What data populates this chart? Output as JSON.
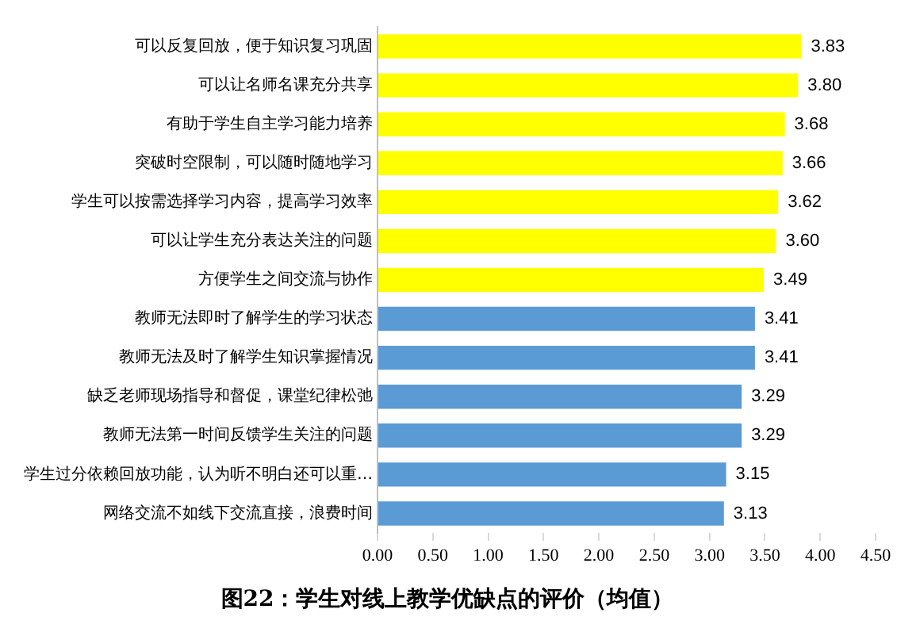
{
  "chart_data": {
    "type": "bar",
    "orientation": "horizontal",
    "title": "图22：学生对线上教学优缺点的评价（均值）",
    "categories": [
      "可以反复回放，便于知识复习巩固",
      "可以让名师名课充分共享",
      "有助于学生自主学习能力培养",
      "突破时空限制，可以随时随地学习",
      "学生可以按需选择学习内容，提高学习效率",
      "可以让学生充分表达关注的问题",
      "方便学生之间交流与协作",
      "教师无法即时了解学生的学习状态",
      "教师无法及时了解学生知识掌握情况",
      "缺乏老师现场指导和督促，课堂纪律松弛",
      "教师无法第一时间反馈学生关注的问题",
      "学生过分依赖回放功能，认为听不明白还可以重…",
      "网络交流不如线下交流直接，浪费时间"
    ],
    "values": [
      3.83,
      3.8,
      3.68,
      3.66,
      3.62,
      3.6,
      3.49,
      3.41,
      3.41,
      3.29,
      3.29,
      3.15,
      3.13
    ],
    "colors": [
      "#ffff00",
      "#ffff00",
      "#ffff00",
      "#ffff00",
      "#ffff00",
      "#ffff00",
      "#ffff00",
      "#5b9bd5",
      "#5b9bd5",
      "#5b9bd5",
      "#5b9bd5",
      "#5b9bd5",
      "#5b9bd5"
    ],
    "xlim": [
      0,
      4.5
    ],
    "xticks": [
      {
        "value": 0,
        "label": "0.00"
      },
      {
        "value": 0.5,
        "label": "0.50"
      },
      {
        "value": 1,
        "label": "1.00"
      },
      {
        "value": 1.5,
        "label": "1.50"
      },
      {
        "value": 2,
        "label": "2.00"
      },
      {
        "value": 2.5,
        "label": "2.50"
      },
      {
        "value": 3,
        "label": "3.00"
      },
      {
        "value": 3.5,
        "label": "3.50"
      },
      {
        "value": 4,
        "label": "4.00"
      },
      {
        "value": 4.5,
        "label": "4.50"
      }
    ],
    "value_labels": [
      "3.83",
      "3.80",
      "3.68",
      "3.66",
      "3.62",
      "3.60",
      "3.49",
      "3.41",
      "3.41",
      "3.29",
      "3.29",
      "3.15",
      "3.13"
    ],
    "grid": false,
    "legend": false
  }
}
